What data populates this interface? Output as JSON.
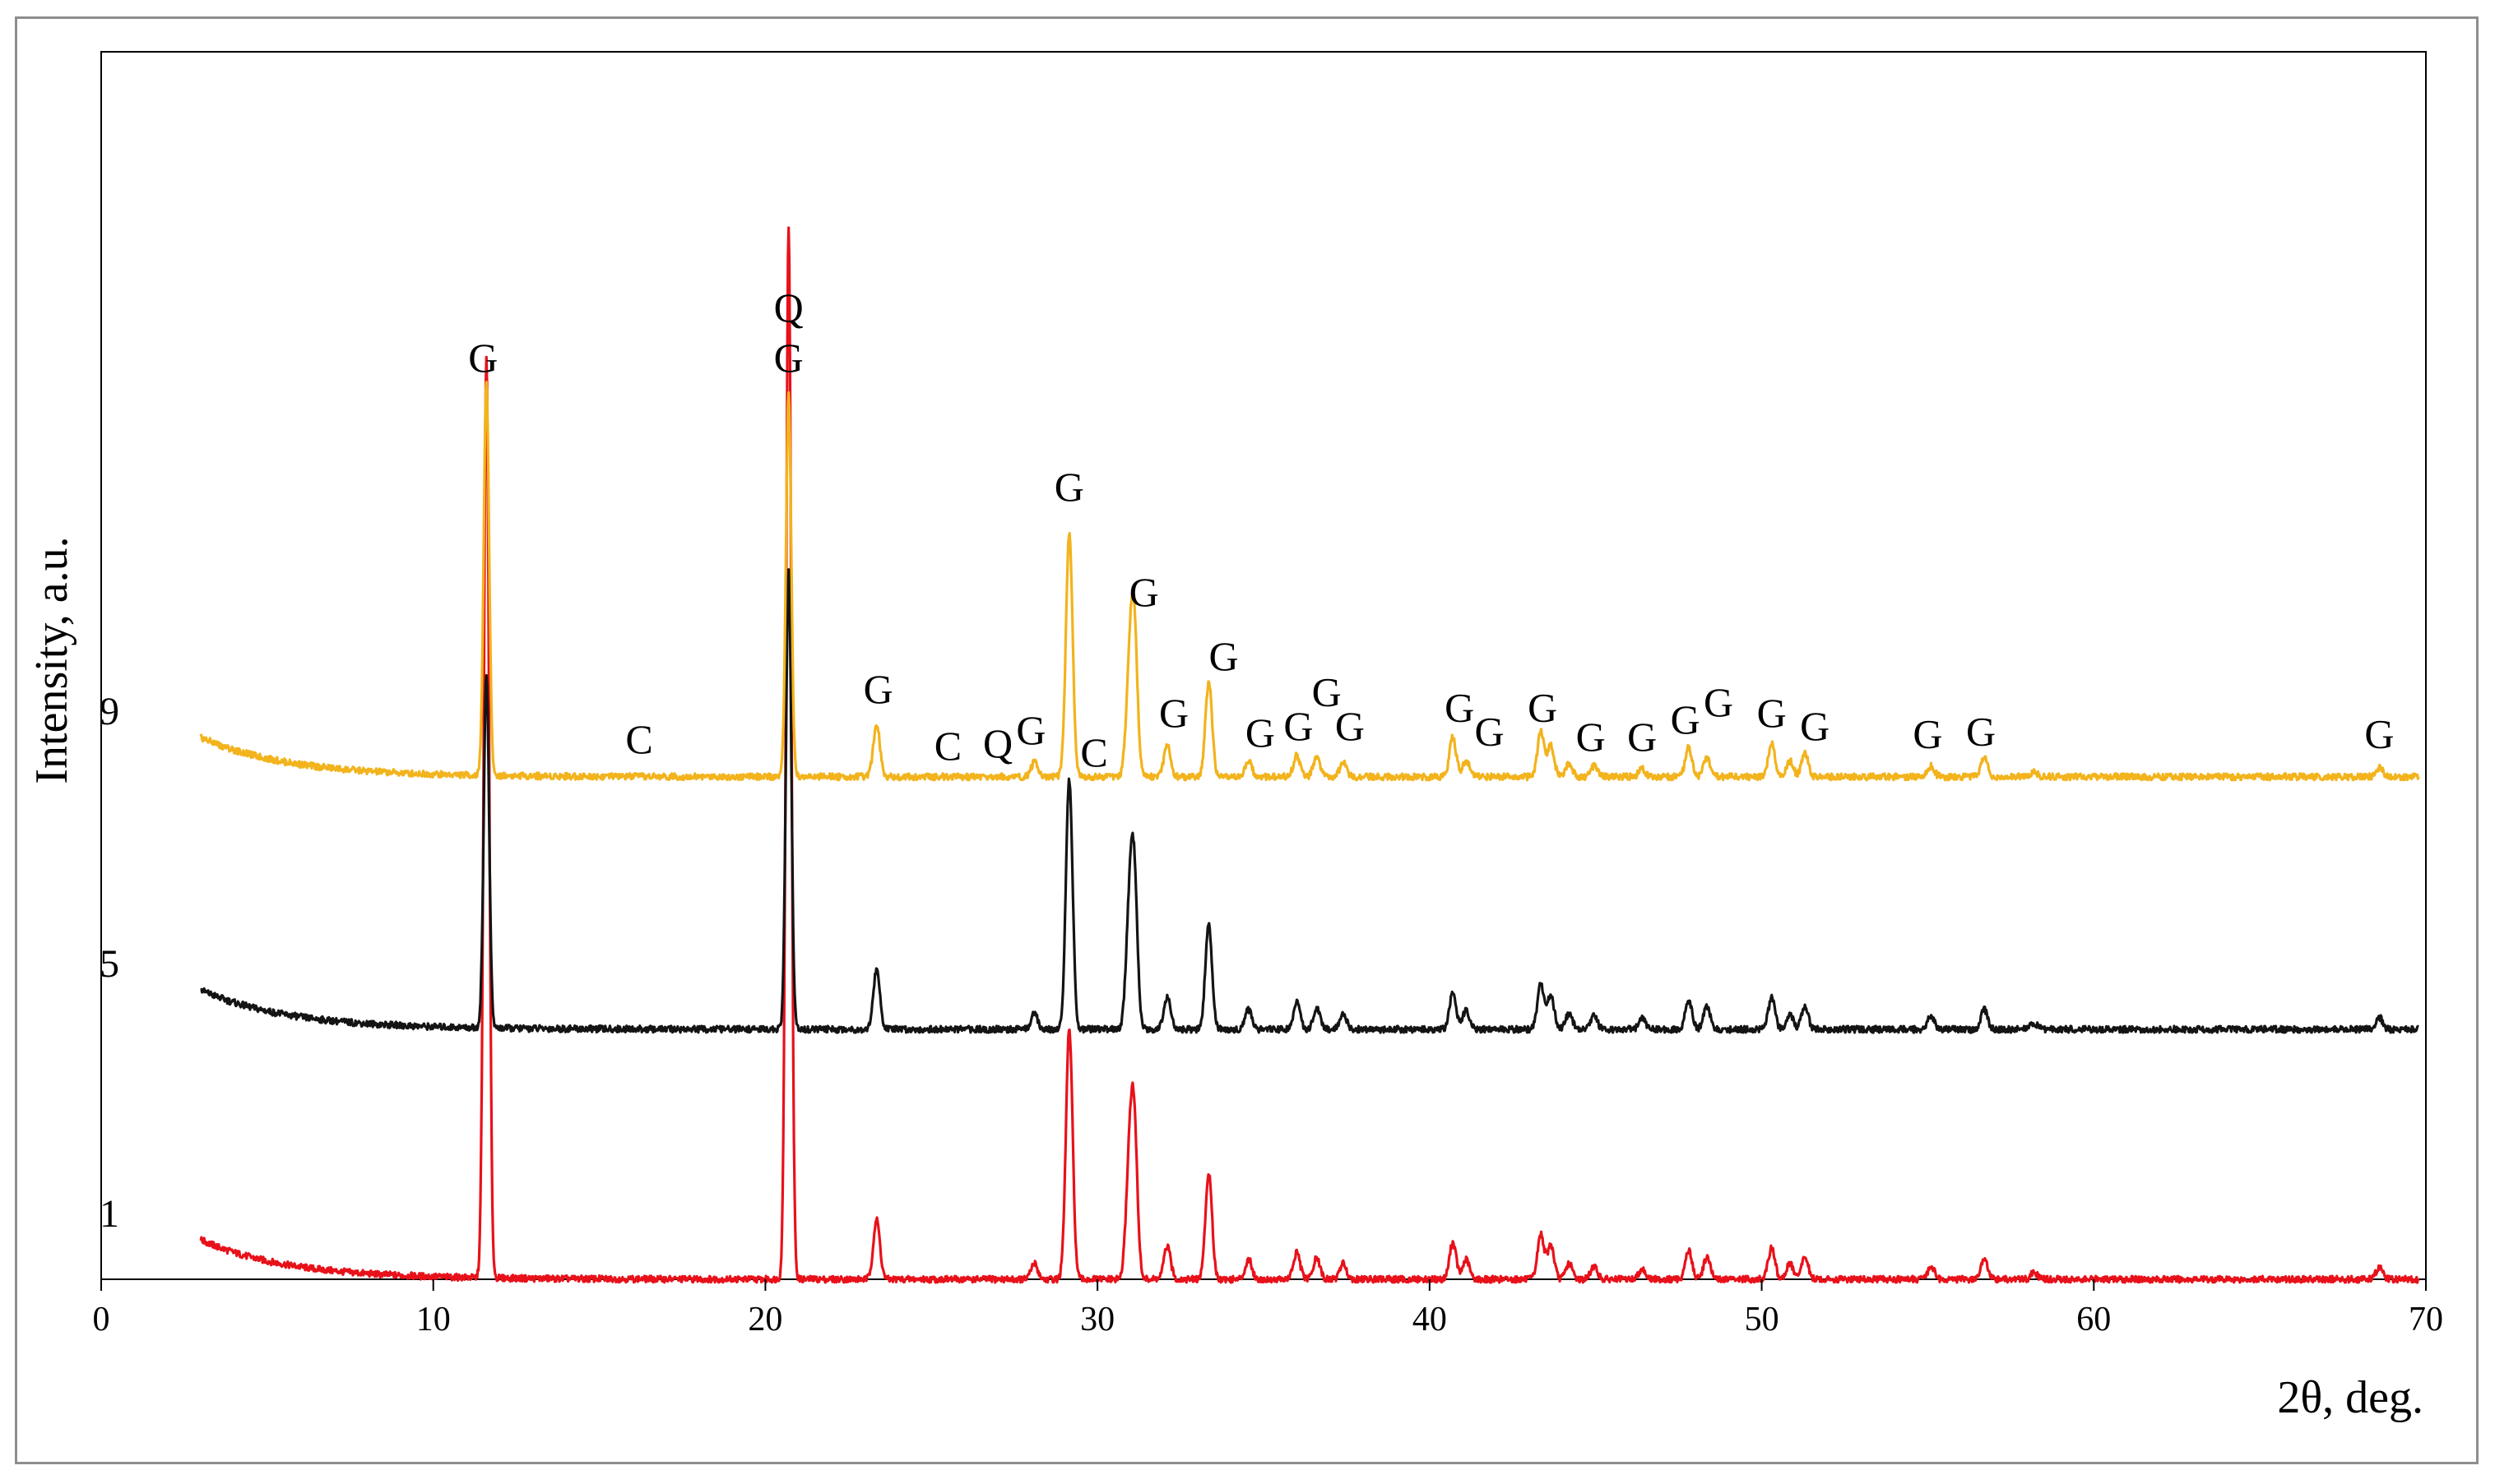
{
  "chart_data": {
    "type": "line",
    "xlabel": "2θ, deg.",
    "ylabel": "Intensity,  a.u.",
    "xlim": [
      0,
      70
    ],
    "x_ticks": [
      0,
      10,
      20,
      30,
      40,
      50,
      60,
      70
    ],
    "y_ticks": [],
    "grid": false,
    "legend": "none",
    "colors": {
      "1": "#e8111a",
      "5": "#141414",
      "9": "#f2b31c"
    },
    "series": [
      {
        "name": "1",
        "color": "#e8111a",
        "baseline": 0,
        "start_value": 30,
        "peaks": [
          [
            11.6,
            700
          ],
          [
            20.7,
            800
          ],
          [
            23.35,
            45
          ],
          [
            28.1,
            12
          ],
          [
            29.15,
            190
          ],
          [
            30.95,
            75
          ],
          [
            31.1,
            115
          ],
          [
            32.1,
            25
          ],
          [
            33.35,
            80
          ],
          [
            34.55,
            15
          ],
          [
            36.0,
            20
          ],
          [
            36.6,
            16
          ],
          [
            37.4,
            12
          ],
          [
            40.7,
            28
          ],
          [
            41.1,
            15
          ],
          [
            43.35,
            34
          ],
          [
            43.65,
            26
          ],
          [
            44.2,
            12
          ],
          [
            44.95,
            10
          ],
          [
            46.4,
            8
          ],
          [
            47.8,
            22
          ],
          [
            48.35,
            17
          ],
          [
            50.3,
            24
          ],
          [
            50.85,
            12
          ],
          [
            51.3,
            17
          ],
          [
            55.1,
            10
          ],
          [
            56.7,
            15
          ],
          [
            58.2,
            5
          ],
          [
            68.6,
            9
          ]
        ]
      },
      {
        "name": "5",
        "color": "#141414",
        "baseline": 190,
        "start_value": 30,
        "peaks": [
          [
            11.6,
            270
          ],
          [
            20.7,
            350
          ],
          [
            23.35,
            45
          ],
          [
            28.1,
            12
          ],
          [
            29.15,
            190
          ],
          [
            30.95,
            75
          ],
          [
            31.1,
            115
          ],
          [
            32.1,
            25
          ],
          [
            33.35,
            80
          ],
          [
            34.55,
            15
          ],
          [
            36.0,
            20
          ],
          [
            36.6,
            16
          ],
          [
            37.4,
            12
          ],
          [
            40.7,
            28
          ],
          [
            41.1,
            15
          ],
          [
            43.35,
            34
          ],
          [
            43.65,
            26
          ],
          [
            44.2,
            12
          ],
          [
            44.95,
            10
          ],
          [
            46.4,
            8
          ],
          [
            47.8,
            22
          ],
          [
            48.35,
            17
          ],
          [
            50.3,
            24
          ],
          [
            50.85,
            12
          ],
          [
            51.3,
            17
          ],
          [
            55.1,
            10
          ],
          [
            56.7,
            15
          ],
          [
            58.2,
            5
          ],
          [
            68.6,
            9
          ]
        ]
      },
      {
        "name": "9",
        "color": "#f2b31c",
        "baseline": 382,
        "start_value": 30,
        "peaks": [
          [
            11.6,
            300
          ],
          [
            20.7,
            290
          ],
          [
            23.35,
            40
          ],
          [
            28.1,
            11
          ],
          [
            29.15,
            185
          ],
          [
            30.95,
            65
          ],
          [
            31.1,
            115
          ],
          [
            32.1,
            24
          ],
          [
            33.35,
            72
          ],
          [
            34.55,
            12
          ],
          [
            36.0,
            16
          ],
          [
            36.6,
            14
          ],
          [
            37.4,
            11
          ],
          [
            40.7,
            30
          ],
          [
            41.1,
            12
          ],
          [
            43.35,
            34
          ],
          [
            43.65,
            24
          ],
          [
            44.2,
            10
          ],
          [
            44.95,
            8
          ],
          [
            46.4,
            6
          ],
          [
            47.8,
            22
          ],
          [
            48.35,
            14
          ],
          [
            50.3,
            25
          ],
          [
            50.85,
            12
          ],
          [
            51.3,
            18
          ],
          [
            55.1,
            8
          ],
          [
            56.7,
            15
          ],
          [
            58.2,
            4
          ],
          [
            68.6,
            7
          ]
        ]
      }
    ],
    "annotations": [
      {
        "text": "G",
        "x": 11.5,
        "y": 690
      },
      {
        "text": "Q",
        "x": 20.7,
        "y": 728
      },
      {
        "text": "G",
        "x": 20.7,
        "y": 690
      },
      {
        "text": "G",
        "x": 23.4,
        "y": 438
      },
      {
        "text": "C",
        "x": 16.2,
        "y": 400
      },
      {
        "text": "C",
        "x": 25.5,
        "y": 395
      },
      {
        "text": "Q",
        "x": 27.0,
        "y": 397
      },
      {
        "text": "G",
        "x": 28.0,
        "y": 407
      },
      {
        "text": "C",
        "x": 29.9,
        "y": 390
      },
      {
        "text": "G",
        "x": 29.15,
        "y": 592
      },
      {
        "text": "G",
        "x": 31.4,
        "y": 512
      },
      {
        "text": "G",
        "x": 32.3,
        "y": 420
      },
      {
        "text": "G",
        "x": 33.8,
        "y": 463
      },
      {
        "text": "G",
        "x": 34.9,
        "y": 405
      },
      {
        "text": "G",
        "x": 36.05,
        "y": 410
      },
      {
        "text": "G",
        "x": 36.9,
        "y": 436
      },
      {
        "text": "G",
        "x": 37.6,
        "y": 410
      },
      {
        "text": "G",
        "x": 40.9,
        "y": 424
      },
      {
        "text": "G",
        "x": 41.8,
        "y": 406
      },
      {
        "text": "G",
        "x": 43.4,
        "y": 424
      },
      {
        "text": "G",
        "x": 44.85,
        "y": 402
      },
      {
        "text": "G",
        "x": 46.4,
        "y": 402
      },
      {
        "text": "G",
        "x": 47.7,
        "y": 415
      },
      {
        "text": "G",
        "x": 48.7,
        "y": 428
      },
      {
        "text": "G",
        "x": 50.3,
        "y": 420
      },
      {
        "text": "G",
        "x": 51.6,
        "y": 410
      },
      {
        "text": "G",
        "x": 55.0,
        "y": 404
      },
      {
        "text": "G",
        "x": 56.6,
        "y": 406
      },
      {
        "text": "G",
        "x": 68.6,
        "y": 404
      }
    ]
  }
}
